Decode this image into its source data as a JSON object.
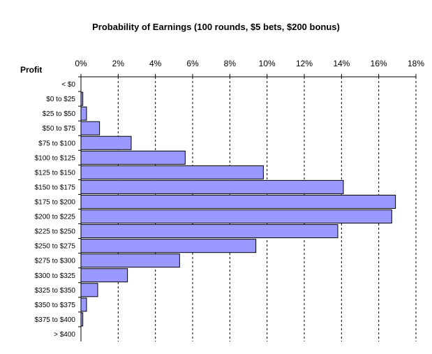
{
  "chart_data": {
    "type": "bar",
    "orientation": "horizontal",
    "title": "Probability of Earnings (100 rounds, $5 bets, $200 bonus)",
    "ylabel": "Profit",
    "xlabel": "",
    "x_axis_position": "top",
    "xlim": [
      0,
      18
    ],
    "x_ticks": [
      "0%",
      "2%",
      "4%",
      "6%",
      "8%",
      "10%",
      "12%",
      "14%",
      "16%",
      "18%"
    ],
    "grid": "vertical-dashed",
    "bar_color": "#9999ff",
    "categories": [
      "< $0",
      "$0 to $25",
      "$25 to $50",
      "$50 to $75",
      "$75 to $100",
      "$100 to $125",
      "$125 to $150",
      "$150 to $175",
      "$175 to $200",
      "$200 to $225",
      "$225 to $250",
      "$250 to $275",
      "$275 to $300",
      "$300 to $325",
      "$325 to $350",
      "$350 to $375",
      "$375 to $400",
      "> $400"
    ],
    "values": [
      0.0,
      0.1,
      0.3,
      1.0,
      2.7,
      5.6,
      9.8,
      14.1,
      16.9,
      16.7,
      13.8,
      9.4,
      5.3,
      2.5,
      0.9,
      0.3,
      0.1,
      0.0
    ]
  }
}
